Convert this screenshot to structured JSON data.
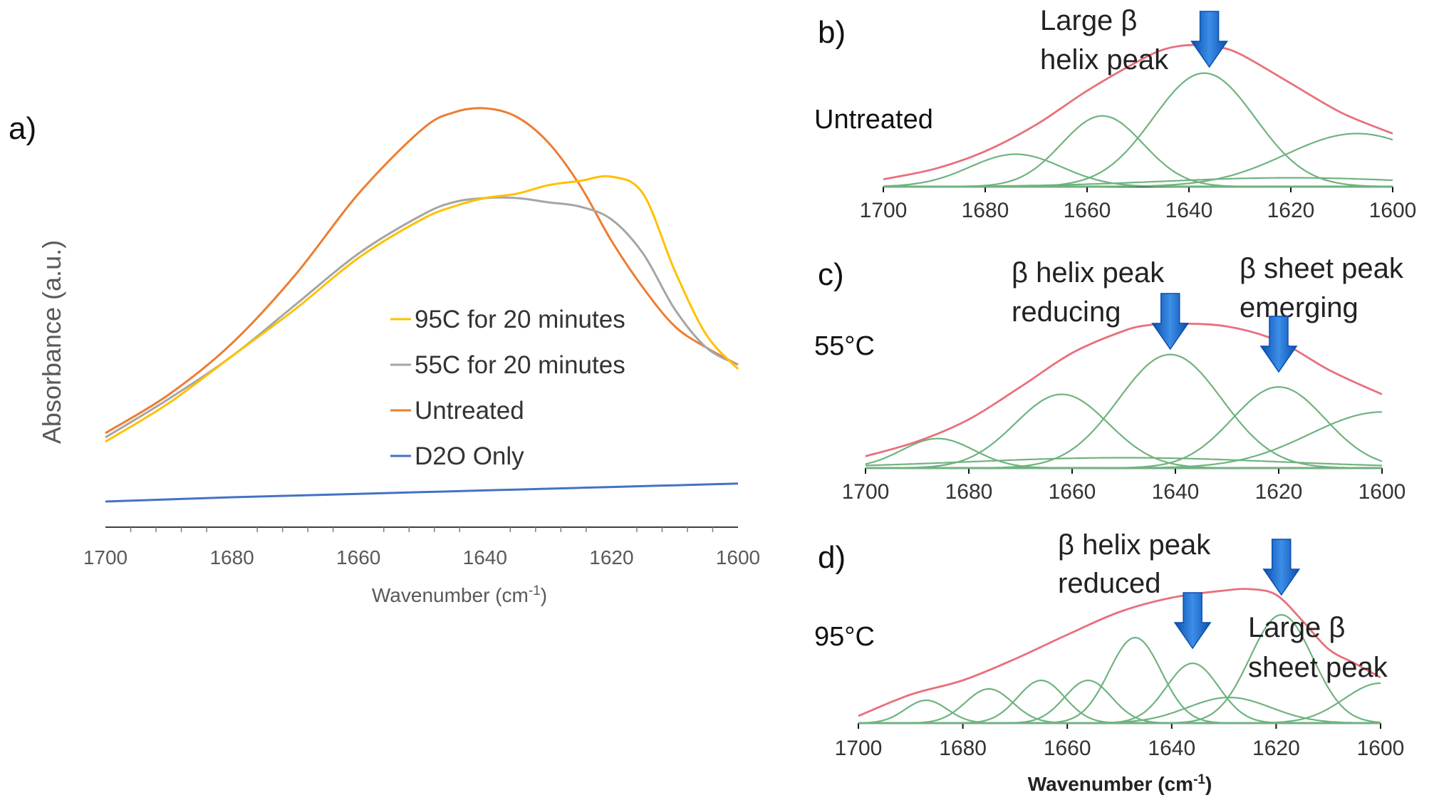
{
  "chart_data": [
    {
      "id": "a",
      "panel_label": "a)",
      "type": "line",
      "xlabel": "Wavenumber (cm",
      "xlabel_sup": "-1",
      "xlabel_end": ")",
      "ylabel": "Absorbance (a.u.)",
      "xlim": [
        1700,
        1600
      ],
      "ylim": [
        0,
        1
      ],
      "xticks": [
        "1700",
        "1680",
        "1660",
        "1640",
        "1620",
        "1600"
      ],
      "x": [
        1700,
        1690,
        1680,
        1670,
        1660,
        1650,
        1645,
        1640,
        1635,
        1630,
        1625,
        1620,
        1615,
        1610,
        1605,
        1600
      ],
      "series": [
        {
          "name": "D2O Only",
          "color": "#4472c4",
          "values": [
            0.06,
            0.065,
            0.07,
            0.074,
            0.078,
            0.082,
            0.084,
            0.086,
            0.088,
            0.09,
            0.092,
            0.094,
            0.096,
            0.098,
            0.1,
            0.102
          ]
        },
        {
          "name": "Untreated",
          "color": "#ed7d31",
          "values": [
            0.22,
            0.31,
            0.43,
            0.59,
            0.78,
            0.93,
            0.97,
            0.98,
            0.96,
            0.9,
            0.8,
            0.67,
            0.56,
            0.47,
            0.42,
            0.38
          ]
        },
        {
          "name": "55C for 20 minutes",
          "color": "#a5a5a5",
          "values": [
            0.21,
            0.3,
            0.4,
            0.52,
            0.64,
            0.73,
            0.76,
            0.77,
            0.77,
            0.76,
            0.75,
            0.72,
            0.64,
            0.51,
            0.42,
            0.38
          ]
        },
        {
          "name": "95C for 20 minutes",
          "color": "#ffc000",
          "values": [
            0.2,
            0.29,
            0.4,
            0.51,
            0.63,
            0.72,
            0.75,
            0.77,
            0.78,
            0.8,
            0.81,
            0.82,
            0.78,
            0.6,
            0.45,
            0.37
          ]
        }
      ]
    },
    {
      "id": "b",
      "panel_label": "b)",
      "condition": "Untreated",
      "type": "line",
      "xlim": [
        1700,
        1600
      ],
      "ylim": [
        0,
        1
      ],
      "xticks": [
        "1700",
        "1680",
        "1660",
        "1640",
        "1620",
        "1600"
      ],
      "envelope_color": "#e8707c",
      "component_color": "#6fb37f",
      "envelope": {
        "x": [
          1700,
          1690,
          1680,
          1670,
          1660,
          1650,
          1645,
          1640,
          1635,
          1630,
          1620,
          1610,
          1600
        ],
        "values": [
          0.05,
          0.12,
          0.24,
          0.42,
          0.65,
          0.85,
          0.93,
          0.96,
          0.95,
          0.9,
          0.7,
          0.5,
          0.36
        ]
      },
      "components": [
        {
          "center": 1674,
          "height": 0.22,
          "width": 9
        },
        {
          "center": 1657,
          "height": 0.48,
          "width": 8
        },
        {
          "center": 1637,
          "height": 0.77,
          "width": 10
        },
        {
          "center": 1607,
          "height": 0.36,
          "width": 14
        },
        {
          "center": 1620,
          "height": 0.06,
          "width": 25
        }
      ],
      "annotations": [
        {
          "lines": [
            "Large β",
            "helix peak"
          ],
          "arrow_at": 1636
        }
      ]
    },
    {
      "id": "c",
      "panel_label": "c)",
      "condition": "55°C",
      "type": "line",
      "xlim": [
        1700,
        1600
      ],
      "ylim": [
        0,
        1
      ],
      "xticks": [
        "1700",
        "1680",
        "1660",
        "1640",
        "1620",
        "1600"
      ],
      "envelope_color": "#e8707c",
      "component_color": "#6fb37f",
      "envelope": {
        "x": [
          1700,
          1690,
          1680,
          1670,
          1660,
          1650,
          1645,
          1640,
          1630,
          1620,
          1610,
          1600
        ],
        "values": [
          0.08,
          0.18,
          0.33,
          0.55,
          0.78,
          0.93,
          0.97,
          0.98,
          0.96,
          0.86,
          0.66,
          0.5
        ]
      },
      "components": [
        {
          "center": 1686,
          "height": 0.2,
          "width": 7
        },
        {
          "center": 1662,
          "height": 0.5,
          "width": 9
        },
        {
          "center": 1641,
          "height": 0.77,
          "width": 10
        },
        {
          "center": 1620,
          "height": 0.55,
          "width": 9
        },
        {
          "center": 1600,
          "height": 0.38,
          "width": 14
        },
        {
          "center": 1650,
          "height": 0.07,
          "width": 30
        }
      ],
      "annotations": [
        {
          "lines": [
            "β helix peak",
            "reducing"
          ],
          "arrow_at": 1641
        },
        {
          "lines": [
            "β sheet peak",
            "emerging"
          ],
          "arrow_at": 1620
        }
      ]
    },
    {
      "id": "d",
      "panel_label": "d)",
      "condition": "95°C",
      "type": "line",
      "xlabel": "Wavenumber (cm",
      "xlabel_sup": "-1",
      "xlabel_end": ")",
      "xlim": [
        1700,
        1600
      ],
      "ylim": [
        0,
        1
      ],
      "xticks": [
        "1700",
        "1680",
        "1660",
        "1640",
        "1620",
        "1600"
      ],
      "envelope_color": "#e8707c",
      "component_color": "#6fb37f",
      "envelope": {
        "x": [
          1700,
          1690,
          1680,
          1670,
          1660,
          1650,
          1640,
          1630,
          1625,
          1620,
          1615,
          1610,
          1605,
          1600
        ],
        "values": [
          0.05,
          0.2,
          0.3,
          0.45,
          0.62,
          0.78,
          0.88,
          0.93,
          0.94,
          0.9,
          0.72,
          0.52,
          0.42,
          0.32
        ]
      },
      "components": [
        {
          "center": 1687,
          "height": 0.16,
          "width": 4
        },
        {
          "center": 1675,
          "height": 0.24,
          "width": 4.5
        },
        {
          "center": 1665,
          "height": 0.3,
          "width": 4.5
        },
        {
          "center": 1656,
          "height": 0.3,
          "width": 4.5
        },
        {
          "center": 1647,
          "height": 0.6,
          "width": 5
        },
        {
          "center": 1636,
          "height": 0.42,
          "width": 5
        },
        {
          "center": 1619,
          "height": 0.76,
          "width": 6
        },
        {
          "center": 1629,
          "height": 0.18,
          "width": 8
        },
        {
          "center": 1600,
          "height": 0.28,
          "width": 7
        }
      ],
      "annotations": [
        {
          "lines": [
            "β helix peak",
            "reduced"
          ],
          "arrow_at": 1636
        },
        {
          "lines": [
            "Large β",
            "sheet peak"
          ],
          "arrow_at": 1619
        }
      ]
    }
  ]
}
